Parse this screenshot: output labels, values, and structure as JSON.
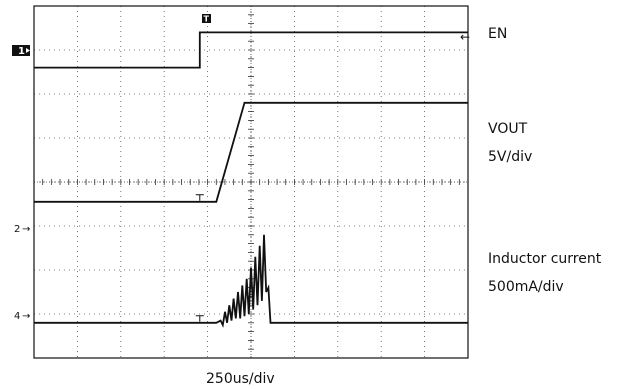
{
  "chart_data": {
    "type": "line",
    "title": "",
    "xlabel": "250us/div",
    "grid": true,
    "divisions": {
      "x": 10,
      "y": 8
    },
    "series": [
      {
        "name": "EN",
        "channel_marker": "1",
        "scale": "",
        "x_div": [
          0,
          3.82,
          3.82,
          10
        ],
        "y_div": [
          6.6,
          6.6,
          7.4,
          7.4
        ],
        "color": "#111111"
      },
      {
        "name": "VOUT",
        "channel_marker": "",
        "scale": "5V/div",
        "x_div": [
          0,
          4.2,
          4.85,
          10
        ],
        "y_div": [
          3.55,
          3.55,
          5.8,
          5.8
        ],
        "color": "#111111"
      },
      {
        "name": "Inductor current",
        "channel_marker": "4",
        "scale": "500mA/div",
        "x_div": [
          0,
          4.2,
          4.3,
          4.35,
          4.4,
          4.45,
          4.5,
          4.55,
          4.6,
          4.65,
          4.7,
          4.75,
          4.8,
          4.85,
          4.9,
          4.95,
          5.0,
          5.05,
          5.1,
          5.15,
          5.2,
          5.25,
          5.3,
          5.35,
          5.4,
          5.45,
          5.5,
          10
        ],
        "y_div": [
          0.8,
          0.8,
          0.85,
          0.75,
          1.05,
          0.8,
          1.2,
          0.85,
          1.35,
          0.9,
          1.5,
          0.9,
          1.65,
          0.95,
          1.8,
          1.0,
          2.05,
          1.1,
          2.3,
          1.2,
          2.55,
          1.3,
          2.8,
          1.5,
          1.6,
          0.8,
          0.8,
          0.8
        ],
        "color": "#111111"
      }
    ],
    "channel_labels": [
      "1",
      "2",
      "4"
    ]
  },
  "labels": {
    "en": "EN",
    "vout": "VOUT",
    "vout_scale": "5V/div",
    "inductor": "Inductor current",
    "inductor_scale": "500mA/div",
    "timebase": "250us/div",
    "ch1": "1",
    "ch2": "2",
    "ch4": "4",
    "trigger_marker": "T"
  }
}
